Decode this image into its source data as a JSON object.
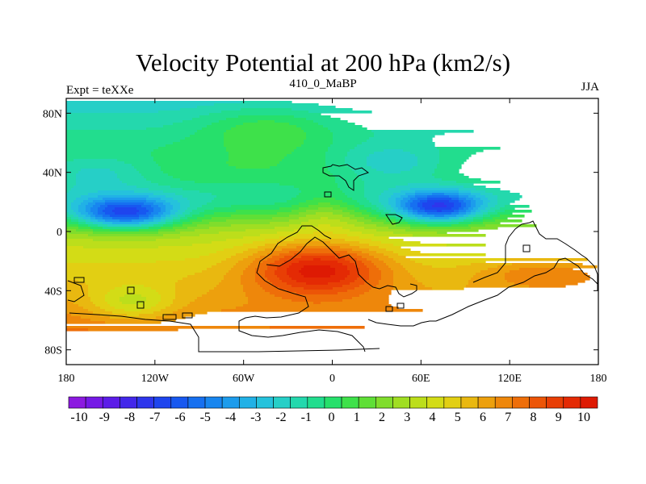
{
  "chart_data": {
    "type": "heatmap",
    "title": "Velocity Potential at 200 hPa (km2/s)",
    "left_label": "Expt = teXXe",
    "center_label": "410_0_MaBP",
    "right_label": "JJA",
    "x_ticks": [
      "180",
      "120W",
      "60W",
      "0",
      "60E",
      "120E",
      "180"
    ],
    "x_tick_values": [
      -180,
      -120,
      -60,
      0,
      60,
      120,
      180
    ],
    "y_ticks": [
      "80N",
      "40N",
      "0",
      "40S",
      "80S"
    ],
    "y_tick_values": [
      80,
      40,
      0,
      -40,
      -80
    ],
    "xlim": [
      -180,
      180
    ],
    "ylim": [
      -90,
      90
    ],
    "colorbar": {
      "labels": [
        "-10",
        "-9",
        "-8",
        "-7",
        "-6",
        "-5",
        "-4",
        "-3",
        "-2",
        "-1",
        "0",
        "1",
        "2",
        "3",
        "4",
        "5",
        "6",
        "7",
        "8",
        "9",
        "10"
      ],
      "min": -10,
      "max": 10,
      "colors": [
        "#8c1ae0",
        "#7519e6",
        "#5c1ce8",
        "#4327ea",
        "#2e36ec",
        "#1e45ee",
        "#1758f0",
        "#1670f0",
        "#1886ef",
        "#1c9cec",
        "#21b1e6",
        "#25c2dc",
        "#26cfc7",
        "#24d8ad",
        "#22dd8e",
        "#26e06b",
        "#3ee14a",
        "#5fdf36",
        "#80dd2c",
        "#a0de22",
        "#bcde1b",
        "#d3dc16",
        "#e2cf13",
        "#e9b810",
        "#eda00d",
        "#ee870b",
        "#ee6e09",
        "#ec5507",
        "#e83e05",
        "#e42a04",
        "#de1a03"
      ]
    },
    "field_features": [
      {
        "feature": "central high",
        "lon": -10,
        "lat": -25,
        "value": 9.2
      },
      {
        "feature": "low over tropical Pacific",
        "lon": -140,
        "lat": 12,
        "value": -6.2
      },
      {
        "feature": "low over Indian Ocean",
        "lon": 72,
        "lat": 15,
        "value": -6.0
      },
      {
        "feature": "secondary high",
        "lon": 145,
        "lat": -28,
        "value": 6.0
      },
      {
        "feature": "southern Pacific relative low",
        "lon": -130,
        "lat": -48,
        "value": 2.7
      }
    ]
  }
}
